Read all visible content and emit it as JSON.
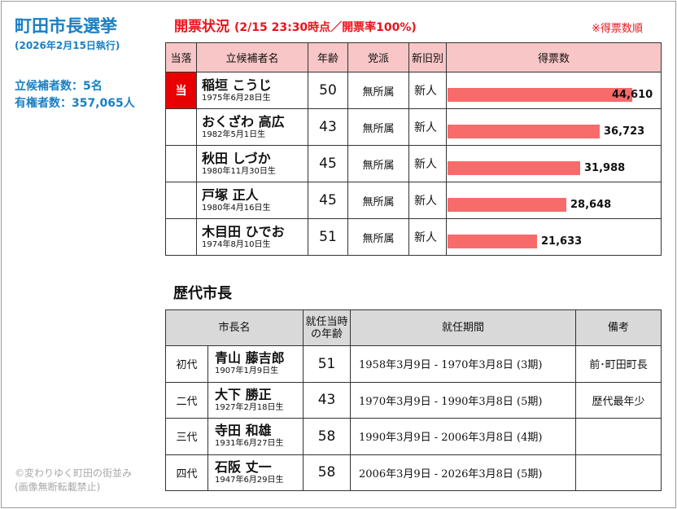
{
  "header": {
    "title": "町田市長選挙",
    "subtitle": "(2026年2月15日執行)",
    "candidates_count": "立候補者数：5名",
    "voters_count": "有権者数：357,065人"
  },
  "results": {
    "title": "開票状況",
    "meta": "(2/15 23:30時点／開票率100%)",
    "note": "※得票数順",
    "columns": [
      "当落",
      "立候補者名",
      "年齢",
      "党派",
      "新旧別",
      "得票数"
    ],
    "win_mark": "当",
    "max_votes": 46000,
    "candidates": [
      {
        "name": "稲垣 こうじ",
        "birth": "1975年6月28日生",
        "age": "50",
        "party": "無所属",
        "status": "新人",
        "votes_label": "44,610",
        "votes": 44610,
        "winner": true
      },
      {
        "name": "おくざわ 高広",
        "birth": "1982年5月1日生",
        "age": "43",
        "party": "無所属",
        "status": "新人",
        "votes_label": "36,723",
        "votes": 36723,
        "winner": false
      },
      {
        "name": "秋田 しづか",
        "birth": "1980年11月30日生",
        "age": "45",
        "party": "無所属",
        "status": "新人",
        "votes_label": "31,988",
        "votes": 31988,
        "winner": false
      },
      {
        "name": "戸塚 正人",
        "birth": "1980年4月16日生",
        "age": "45",
        "party": "無所属",
        "status": "新人",
        "votes_label": "28,648",
        "votes": 28648,
        "winner": false
      },
      {
        "name": "木目田 ひでお",
        "birth": "1974年8月10日生",
        "age": "51",
        "party": "無所属",
        "status": "新人",
        "votes_label": "21,633",
        "votes": 21633,
        "winner": false
      }
    ]
  },
  "history": {
    "title": "歴代市長",
    "columns": {
      "name": "市長名",
      "age_line1": "就任当時",
      "age_line2": "の年齢",
      "term": "就任期間",
      "note": "備考"
    },
    "mayors": [
      {
        "order": "初代",
        "name": "青山 藤吉郎",
        "birth": "1907年1月9日生",
        "age": "51",
        "term": "1958年3月9日 - 1970年3月8日 (3期)",
        "note": "前･町田町長"
      },
      {
        "order": "二代",
        "name": "大下 勝正",
        "birth": "1927年2月18日生",
        "age": "43",
        "term": "1970年3月9日 - 1990年3月8日 (5期)",
        "note": "歴代最年少"
      },
      {
        "order": "三代",
        "name": "寺田 和雄",
        "birth": "1931年6月27日生",
        "age": "58",
        "term": "1990年3月9日 - 2006年3月8日 (4期)",
        "note": ""
      },
      {
        "order": "四代",
        "name": "石阪 丈一",
        "birth": "1947年6月29日生",
        "age": "58",
        "term": "2006年3月9日 - 2026年3月8日 (5期)",
        "note": ""
      }
    ]
  },
  "footer": {
    "copyright": "©変わりゆく町田の街並み",
    "notice": "(画像無断転載禁止)"
  },
  "colors": {
    "accent_blue": "#1a7fc4",
    "accent_red": "#e8141b",
    "bar": "#f86b6b",
    "header_pink": "#f8c6c6",
    "header_gray": "#d9d9d9"
  }
}
